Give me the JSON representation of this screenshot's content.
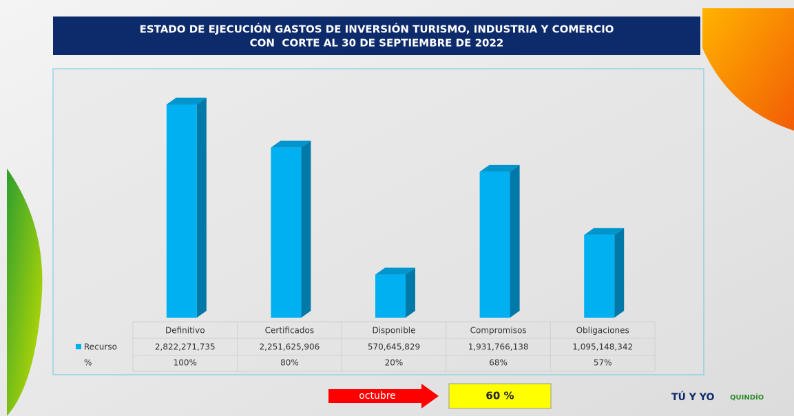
{
  "chart_data": {
    "type": "bar3d",
    "title": "ESTADO DE EJECUCIÓN GASTOS DE INVERSIÓN TURISMO, INDUSTRIA Y COMERCIO",
    "subtitle": "CON  CORTE AL 30 DE SEPTIEMBRE DE 2022",
    "categories": [
      "Definitivo",
      "Certificados",
      "Disponible",
      "Compromisos",
      "Obligaciones"
    ],
    "series": [
      {
        "name": "Recurso",
        "color": "#00b0f0",
        "values": [
          2822271735,
          2251625906,
          570645829,
          1931766138,
          1095148342
        ],
        "value_labels": [
          "2,822,271,735",
          "2,251,625,906",
          "570,645,829",
          "1,931,766,138",
          "1,095,148,342"
        ]
      }
    ],
    "percent_row": {
      "name": "%",
      "values": [
        100,
        80,
        20,
        68,
        57
      ],
      "value_labels": [
        "100%",
        "80%",
        "20%",
        "68%",
        "57%"
      ]
    }
  },
  "footer": {
    "month": "octubre",
    "progress": {
      "value": 60,
      "label": "60 %"
    },
    "logos": [
      "TÚ Y YO",
      "QUINDÍO"
    ]
  }
}
